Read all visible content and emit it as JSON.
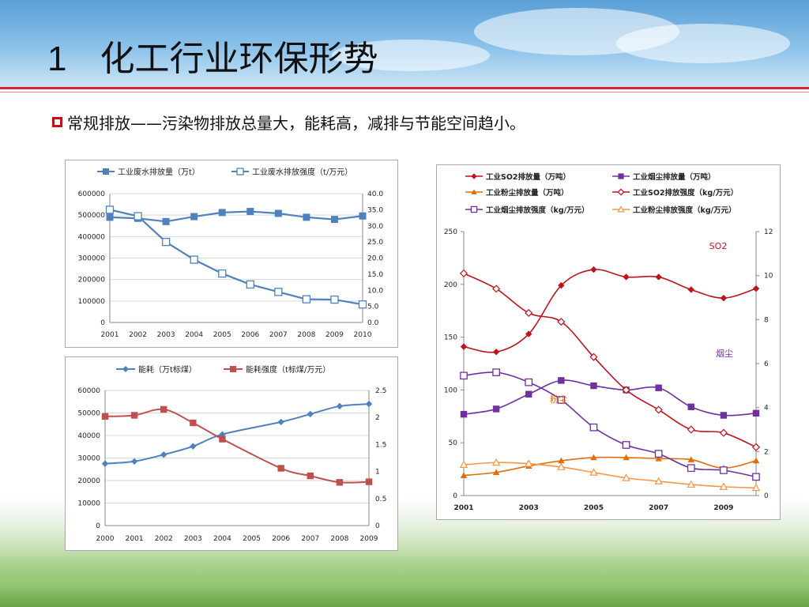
{
  "slide": {
    "title_number": "1",
    "title_text": "化工行业环保形势",
    "bullet": "常规排放——污染物排放总量大，能耗高，减排与节能空间趋小。"
  },
  "colors": {
    "blue": "#4f81bd",
    "red": "#c0504d",
    "dark_red": "#c0121b",
    "purple": "#7030a0",
    "orange": "#f79646"
  },
  "chart_data": [
    {
      "id": "wastewater",
      "type": "line",
      "categories": [
        "2001",
        "2002",
        "2003",
        "2004",
        "2005",
        "2006",
        "2007",
        "2008",
        "2009",
        "2010"
      ],
      "series": [
        {
          "name": "工业废水排放量（万t）",
          "axis": "left",
          "marker": "square-filled",
          "values": [
            490000,
            485000,
            470000,
            493000,
            512000,
            517000,
            508000,
            490000,
            480000,
            496000
          ]
        },
        {
          "name": "工业废水排放强度（t/万元）",
          "axis": "right",
          "marker": "square-open",
          "values": [
            35.0,
            33.0,
            25.0,
            19.5,
            15.2,
            11.8,
            9.5,
            7.2,
            7.1,
            5.6
          ]
        }
      ],
      "y_left_ticks": [
        "0",
        "100000",
        "200000",
        "300000",
        "400000",
        "500000",
        "600000"
      ],
      "y_right_ticks": [
        "0.0",
        "5.0",
        "10.0",
        "15.0",
        "20.0",
        "25.0",
        "30.0",
        "35.0",
        "40.0"
      ],
      "ylim_left": [
        0,
        600000
      ],
      "ylim_right": [
        0,
        40
      ],
      "legend": "top",
      "grid": true
    },
    {
      "id": "energy",
      "type": "line",
      "categories": [
        "2000",
        "2001",
        "2002",
        "2003",
        "2004",
        "2005",
        "2006",
        "2007",
        "2008",
        "2009"
      ],
      "series": [
        {
          "name": "能耗（万t标煤）",
          "axis": "left",
          "marker": "diamond",
          "values": [
            27500,
            28500,
            31500,
            35200,
            40500,
            null,
            46000,
            49500,
            53000,
            54000
          ]
        },
        {
          "name": "能耗强度（t标煤/万元）",
          "axis": "right",
          "marker": "square-filled",
          "values": [
            2.02,
            2.04,
            2.15,
            1.9,
            1.6,
            null,
            1.06,
            0.92,
            0.8,
            0.81
          ]
        }
      ],
      "y_left_ticks": [
        "0",
        "10000",
        "20000",
        "30000",
        "40000",
        "50000",
        "60000"
      ],
      "y_right_ticks": [
        "0",
        "0.5",
        "1",
        "1.5",
        "2",
        "2.5"
      ],
      "ylim_left": [
        0,
        60000
      ],
      "ylim_right": [
        0,
        2.5
      ],
      "legend": "top",
      "grid": true
    },
    {
      "id": "air",
      "type": "line",
      "x": [
        2001,
        2002,
        2003,
        2004,
        2005,
        2006,
        2007,
        2008,
        2009,
        2010
      ],
      "x_tick_labels": [
        "2001",
        "2003",
        "2005",
        "2007",
        "2009"
      ],
      "series": [
        {
          "name": "工业SO2排放量（万吨）",
          "axis": "left",
          "color": "#c0121b",
          "marker": "diamond-filled",
          "values": [
            141,
            136,
            153,
            199,
            214,
            207,
            207,
            195,
            187,
            196
          ]
        },
        {
          "name": "工业烟尘排放量（万吨）",
          "axis": "left",
          "color": "#7030a0",
          "marker": "square-filled",
          "values": [
            77,
            82,
            96,
            109,
            104,
            100,
            102,
            84,
            76,
            78
          ]
        },
        {
          "name": "工业粉尘排放量（万吨）",
          "axis": "left",
          "color": "#e36c09",
          "marker": "triangle-filled",
          "values": [
            19,
            22,
            28,
            33,
            36,
            36,
            35,
            34,
            26,
            33
          ]
        },
        {
          "name": "工业SO2排放强度（kg/万元）",
          "axis": "right",
          "color": "#c0121b",
          "marker": "diamond-open",
          "values": [
            10.1,
            9.4,
            8.3,
            7.9,
            6.3,
            4.8,
            3.9,
            3.0,
            2.85,
            2.2
          ]
        },
        {
          "name": "工业烟尘排放强度（kg/万元）",
          "axis": "right",
          "color": "#7030a0",
          "marker": "square-open",
          "values": [
            5.45,
            5.6,
            5.15,
            4.35,
            3.1,
            2.3,
            1.9,
            1.25,
            1.15,
            0.85
          ]
        },
        {
          "name": "工业粉尘排放强度（kg/万元）",
          "axis": "right",
          "color": "#f79646",
          "marker": "triangle-open",
          "values": [
            1.4,
            1.5,
            1.45,
            1.3,
            1.05,
            0.8,
            0.65,
            0.5,
            0.4,
            0.35
          ]
        }
      ],
      "y_left_ticks": [
        "0",
        "50",
        "100",
        "150",
        "200",
        "250"
      ],
      "y_right_ticks": [
        "0",
        "2",
        "4",
        "6",
        "8",
        "10",
        "12"
      ],
      "ylim_left": [
        0,
        250
      ],
      "ylim_right": [
        0,
        12
      ],
      "annotations": [
        {
          "text": "SO2",
          "color": "#c0121b"
        },
        {
          "text": "烟尘",
          "color": "#7030a0"
        },
        {
          "text": "粉尘",
          "color": "#e36c09"
        }
      ],
      "legend": "top",
      "grid": false
    }
  ]
}
